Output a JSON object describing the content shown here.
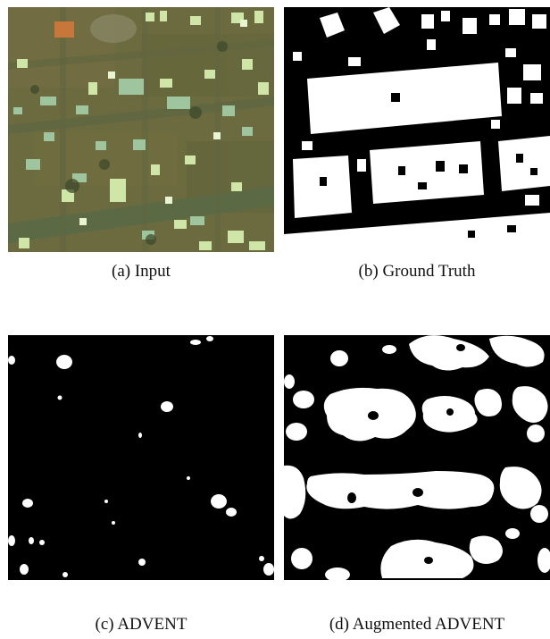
{
  "figure": {
    "panels": [
      {
        "id": "a",
        "caption": "(a)  Input",
        "content": "aerial-image"
      },
      {
        "id": "b",
        "caption": "(b)  Ground Truth",
        "content": "binary-mask"
      },
      {
        "id": "c",
        "caption": "(c)  ADVENT",
        "content": "binary-mask"
      },
      {
        "id": "d",
        "caption": "(d)  Augmented ADVENT",
        "content": "binary-mask"
      }
    ]
  },
  "colors": {
    "aerial_base": "#6f6a3e",
    "road": "#5d6a44",
    "roof_light": "#d6ebb0",
    "roof_tin": "#9fc6a0",
    "roof_orange": "#c8763a",
    "mask_background": "#000000",
    "mask_foreground": "#ffffff",
    "caption_text": "#111111"
  }
}
